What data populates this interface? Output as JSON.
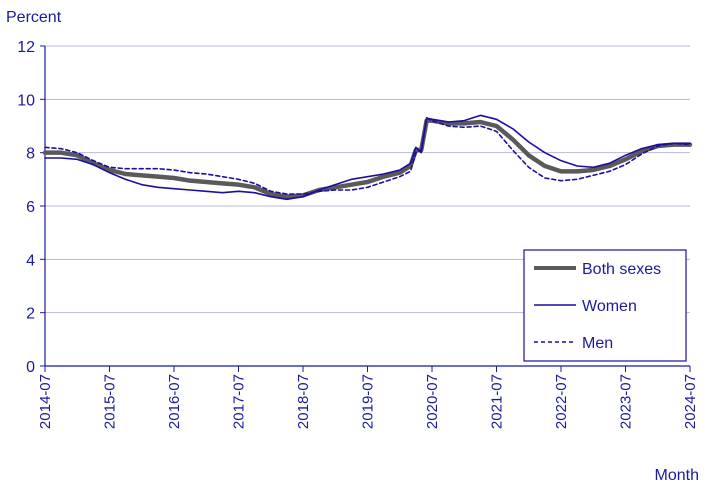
{
  "chart_data": {
    "type": "line",
    "ylabel": "Percent",
    "xlabel": "Month",
    "ylim": [
      0,
      12
    ],
    "yticks": [
      0,
      2,
      4,
      6,
      8,
      10,
      12
    ],
    "xlim": [
      "2014-07",
      "2024-07"
    ],
    "xticks": [
      "2014-07",
      "2015-07",
      "2016-07",
      "2017-07",
      "2018-07",
      "2019-07",
      "2020-07",
      "2021-07",
      "2022-07",
      "2023-07",
      "2024-07"
    ],
    "grid": true,
    "legend_position": "bottom-right",
    "colors": {
      "axis_text": "#1a1a9e",
      "grid": "#b8b8e0",
      "both_sexes": "#5a5a5a",
      "women": "#1a0fa0",
      "men": "#1a0fa0",
      "legend_border": "#1a0fa0"
    },
    "series": [
      {
        "name": "Both sexes",
        "style": "thick-solid",
        "points": [
          [
            "2014-07",
            8.0
          ],
          [
            "2014-10",
            8.0
          ],
          [
            "2015-01",
            7.9
          ],
          [
            "2015-04",
            7.6
          ],
          [
            "2015-07",
            7.35
          ],
          [
            "2015-10",
            7.2
          ],
          [
            "2016-01",
            7.15
          ],
          [
            "2016-04",
            7.1
          ],
          [
            "2016-07",
            7.05
          ],
          [
            "2016-10",
            6.95
          ],
          [
            "2017-01",
            6.9
          ],
          [
            "2017-04",
            6.85
          ],
          [
            "2017-07",
            6.8
          ],
          [
            "2017-10",
            6.7
          ],
          [
            "2018-01",
            6.45
          ],
          [
            "2018-04",
            6.35
          ],
          [
            "2018-07",
            6.4
          ],
          [
            "2018-10",
            6.6
          ],
          [
            "2019-01",
            6.7
          ],
          [
            "2019-04",
            6.8
          ],
          [
            "2019-07",
            6.9
          ],
          [
            "2019-10",
            7.1
          ],
          [
            "2020-01",
            7.25
          ],
          [
            "2020-03",
            7.5
          ],
          [
            "2020-04",
            8.1
          ],
          [
            "2020-05",
            8.1
          ],
          [
            "2020-06",
            9.2
          ],
          [
            "2020-07",
            9.2
          ],
          [
            "2020-10",
            9.1
          ],
          [
            "2021-01",
            9.1
          ],
          [
            "2021-04",
            9.15
          ],
          [
            "2021-07",
            9.0
          ],
          [
            "2021-10",
            8.5
          ],
          [
            "2022-01",
            7.9
          ],
          [
            "2022-04",
            7.5
          ],
          [
            "2022-07",
            7.3
          ],
          [
            "2022-10",
            7.3
          ],
          [
            "2023-01",
            7.35
          ],
          [
            "2023-04",
            7.5
          ],
          [
            "2023-07",
            7.75
          ],
          [
            "2023-10",
            8.05
          ],
          [
            "2024-01",
            8.25
          ],
          [
            "2024-04",
            8.3
          ],
          [
            "2024-07",
            8.3
          ]
        ]
      },
      {
        "name": "Women",
        "style": "thin-solid",
        "points": [
          [
            "2014-07",
            7.8
          ],
          [
            "2014-10",
            7.8
          ],
          [
            "2015-01",
            7.75
          ],
          [
            "2015-04",
            7.55
          ],
          [
            "2015-07",
            7.25
          ],
          [
            "2015-10",
            7.0
          ],
          [
            "2016-01",
            6.8
          ],
          [
            "2016-04",
            6.7
          ],
          [
            "2016-07",
            6.65
          ],
          [
            "2016-10",
            6.6
          ],
          [
            "2017-01",
            6.55
          ],
          [
            "2017-04",
            6.5
          ],
          [
            "2017-07",
            6.55
          ],
          [
            "2017-10",
            6.5
          ],
          [
            "2018-01",
            6.35
          ],
          [
            "2018-04",
            6.25
          ],
          [
            "2018-07",
            6.35
          ],
          [
            "2018-10",
            6.6
          ],
          [
            "2019-01",
            6.8
          ],
          [
            "2019-04",
            7.0
          ],
          [
            "2019-07",
            7.1
          ],
          [
            "2019-10",
            7.2
          ],
          [
            "2020-01",
            7.35
          ],
          [
            "2020-03",
            7.6
          ],
          [
            "2020-04",
            8.2
          ],
          [
            "2020-05",
            8.0
          ],
          [
            "2020-06",
            9.3
          ],
          [
            "2020-07",
            9.25
          ],
          [
            "2020-10",
            9.15
          ],
          [
            "2021-01",
            9.2
          ],
          [
            "2021-04",
            9.4
          ],
          [
            "2021-07",
            9.25
          ],
          [
            "2021-10",
            8.9
          ],
          [
            "2022-01",
            8.4
          ],
          [
            "2022-04",
            8.0
          ],
          [
            "2022-07",
            7.7
          ],
          [
            "2022-10",
            7.5
          ],
          [
            "2023-01",
            7.45
          ],
          [
            "2023-04",
            7.6
          ],
          [
            "2023-07",
            7.9
          ],
          [
            "2023-10",
            8.15
          ],
          [
            "2024-01",
            8.3
          ],
          [
            "2024-04",
            8.35
          ],
          [
            "2024-07",
            8.35
          ]
        ]
      },
      {
        "name": "Men",
        "style": "dashed",
        "points": [
          [
            "2014-07",
            8.2
          ],
          [
            "2014-10",
            8.15
          ],
          [
            "2015-01",
            8.0
          ],
          [
            "2015-04",
            7.7
          ],
          [
            "2015-07",
            7.45
          ],
          [
            "2015-10",
            7.4
          ],
          [
            "2016-01",
            7.4
          ],
          [
            "2016-04",
            7.4
          ],
          [
            "2016-07",
            7.35
          ],
          [
            "2016-10",
            7.25
          ],
          [
            "2017-01",
            7.2
          ],
          [
            "2017-04",
            7.1
          ],
          [
            "2017-07",
            7.0
          ],
          [
            "2017-10",
            6.85
          ],
          [
            "2018-01",
            6.55
          ],
          [
            "2018-04",
            6.45
          ],
          [
            "2018-07",
            6.45
          ],
          [
            "2018-10",
            6.55
          ],
          [
            "2019-01",
            6.6
          ],
          [
            "2019-04",
            6.6
          ],
          [
            "2019-07",
            6.7
          ],
          [
            "2019-10",
            6.9
          ],
          [
            "2020-01",
            7.1
          ],
          [
            "2020-03",
            7.3
          ],
          [
            "2020-04",
            8.0
          ],
          [
            "2020-05",
            8.1
          ],
          [
            "2020-06",
            9.3
          ],
          [
            "2020-07",
            9.2
          ],
          [
            "2020-10",
            9.0
          ],
          [
            "2021-01",
            8.95
          ],
          [
            "2021-04",
            9.0
          ],
          [
            "2021-07",
            8.8
          ],
          [
            "2021-10",
            8.1
          ],
          [
            "2022-01",
            7.45
          ],
          [
            "2022-04",
            7.05
          ],
          [
            "2022-07",
            6.95
          ],
          [
            "2022-10",
            7.0
          ],
          [
            "2023-01",
            7.15
          ],
          [
            "2023-04",
            7.3
          ],
          [
            "2023-07",
            7.55
          ],
          [
            "2023-10",
            7.95
          ],
          [
            "2024-01",
            8.25
          ],
          [
            "2024-04",
            8.35
          ],
          [
            "2024-07",
            8.3
          ]
        ]
      }
    ]
  }
}
